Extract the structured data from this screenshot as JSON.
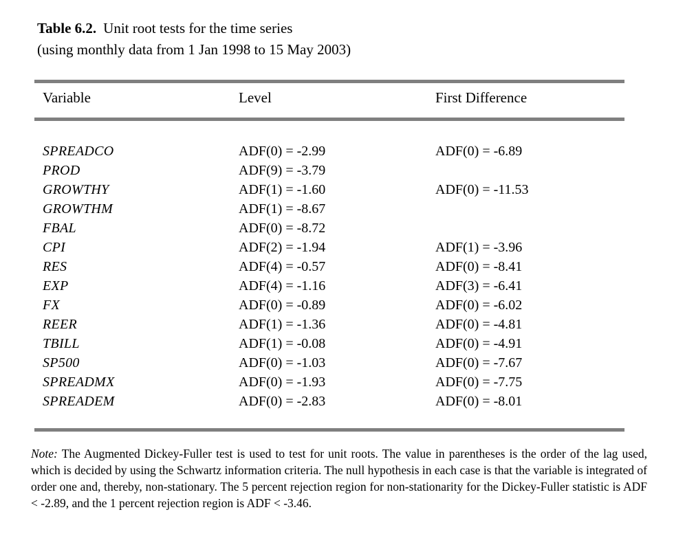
{
  "title": {
    "label": "Table 6.2.",
    "caption": "Unit root tests for the time series",
    "subtitle": "(using monthly data from 1 Jan 1998 to 15 May 2003)"
  },
  "table": {
    "columns": [
      "Variable",
      "Level",
      "First Difference"
    ],
    "rows": [
      {
        "variable": "SPREADCO",
        "level": "ADF(0) = -2.99",
        "first_difference": "ADF(0) = -6.89"
      },
      {
        "variable": "PROD",
        "level": "ADF(9) = -3.79",
        "first_difference": ""
      },
      {
        "variable": "GROWTHY",
        "level": "ADF(1) = -1.60",
        "first_difference": "ADF(0) = -11.53"
      },
      {
        "variable": "GROWTHM",
        "level": "ADF(1) = -8.67",
        "first_difference": ""
      },
      {
        "variable": "FBAL",
        "level": "ADF(0) = -8.72",
        "first_difference": ""
      },
      {
        "variable": "CPI",
        "level": "ADF(2) = -1.94",
        "first_difference": "ADF(1) = -3.96"
      },
      {
        "variable": "RES",
        "level": "ADF(4) = -0.57",
        "first_difference": "ADF(0) = -8.41"
      },
      {
        "variable": "EXP",
        "level": "ADF(4) = -1.16",
        "first_difference": "ADF(3) = -6.41"
      },
      {
        "variable": "FX",
        "level": "ADF(0) = -0.89",
        "first_difference": "ADF(0) = -6.02"
      },
      {
        "variable": "REER",
        "level": "ADF(1) = -1.36",
        "first_difference": "ADF(0) = -4.81"
      },
      {
        "variable": "TBILL",
        "level": "ADF(1) = -0.08",
        "first_difference": "ADF(0) = -4.91"
      },
      {
        "variable": "SP500",
        "level": "ADF(0) = -1.03",
        "first_difference": "ADF(0) = -7.67"
      },
      {
        "variable": "SPREADMX",
        "level": "ADF(0) = -1.93",
        "first_difference": "ADF(0) = -7.75"
      },
      {
        "variable": "SPREADEM",
        "level": "ADF(0) = -2.83",
        "first_difference": "ADF(0) = -8.01"
      }
    ]
  },
  "note": {
    "label": "Note:",
    "text": "The Augmented Dickey-Fuller test is used to test for unit roots. The value in parentheses is the order of the lag used, which is decided by using the Schwartz information criteria. The null hypothesis in each case is that the variable is integrated of order one and, thereby, non-stationary. The 5 percent rejection region for non-stationarity for the Dickey-Fuller statistic is ADF < -2.89, and the 1 percent rejection region is ADF < -3.46."
  },
  "colors": {
    "rule": "#7f7f7f",
    "text": "#000000",
    "background": "#ffffff"
  }
}
